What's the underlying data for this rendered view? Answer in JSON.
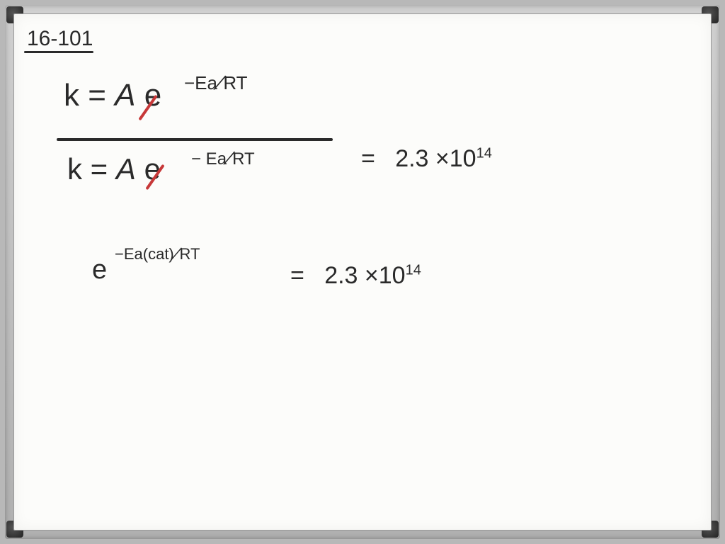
{
  "problem": {
    "number": "16-101"
  },
  "equation_fraction": {
    "numerator": {
      "lhs": "k",
      "equals": "=",
      "A": "A",
      "e": "e",
      "exponent": "−Ea⁄RT"
    },
    "denominator": {
      "lhs": "k",
      "equals": "=",
      "A": "A",
      "e": "e",
      "exponent": "−Ea⁄RT"
    },
    "result": {
      "equals": "=",
      "value": "2.3 ×10",
      "exponent": "14"
    }
  },
  "equation_simplified": {
    "e": "e",
    "exponent": "−Ea(cat)⁄RT",
    "result": {
      "equals": "=",
      "value": "2.3 ×10",
      "exponent": "14"
    }
  },
  "colors": {
    "ink": "#2a2a2a",
    "strike": "#c73838",
    "board": "#fcfcfa",
    "frame": "#b8b8b8"
  }
}
